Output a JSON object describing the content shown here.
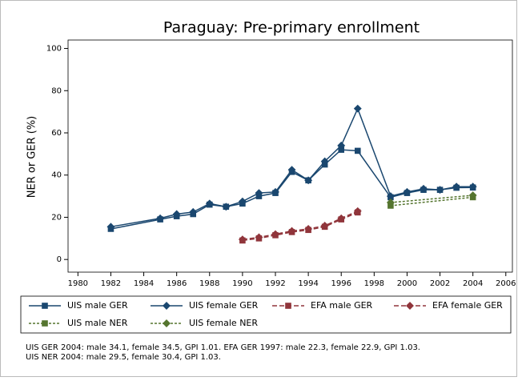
{
  "chart_data": {
    "type": "line",
    "title": "Paraguay: Pre-primary enrollment",
    "y_label": "NER or GER (%)",
    "xlim": [
      1979.4,
      2006.4
    ],
    "ylim": [
      -6,
      104
    ],
    "xticks": [
      1980,
      1982,
      1984,
      1986,
      1988,
      1990,
      1992,
      1994,
      1996,
      1998,
      2000,
      2002,
      2004,
      2006
    ],
    "yticks": [
      0,
      20,
      40,
      60,
      80,
      100
    ],
    "series": [
      {
        "name": "UIS male GER",
        "color": "#1a476f",
        "marker": "square",
        "dash": "solid",
        "x": [
          1982,
          1985,
          1986,
          1987,
          1988,
          1989,
          1990,
          1991,
          1992,
          1993,
          1994,
          1995,
          1996,
          1997,
          1999,
          2000,
          2001,
          2002,
          2003,
          2004
        ],
        "values": [
          14.5,
          19,
          20.5,
          21.5,
          26,
          25,
          26.5,
          30,
          31.5,
          41.5,
          37.5,
          45,
          52,
          51.5,
          29.5,
          31.5,
          33,
          33,
          34,
          34.1
        ]
      },
      {
        "name": "UIS female GER",
        "color": "#1a476f",
        "marker": "diamond",
        "dash": "solid",
        "x": [
          1982,
          1985,
          1986,
          1987,
          1988,
          1989,
          1990,
          1991,
          1992,
          1993,
          1994,
          1995,
          1996,
          1997,
          1999,
          2000,
          2001,
          2002,
          2003,
          2004
        ],
        "values": [
          15.5,
          19.5,
          21.5,
          22.5,
          26.5,
          25,
          27.5,
          31.5,
          32,
          42.5,
          37.5,
          46.5,
          54,
          71.5,
          30,
          32,
          33.5,
          33,
          34.5,
          34.5
        ]
      },
      {
        "name": "EFA male GER",
        "color": "#90353b",
        "marker": "square",
        "dash": "dash",
        "x": [
          1990,
          1991,
          1992,
          1993,
          1994,
          1995,
          1996,
          1997
        ],
        "values": [
          9,
          10,
          11.5,
          13,
          14,
          15.5,
          19,
          22.3
        ]
      },
      {
        "name": "EFA female GER",
        "color": "#90353b",
        "marker": "diamond",
        "dash": "dash",
        "x": [
          1990,
          1991,
          1992,
          1993,
          1994,
          1995,
          1996,
          1997
        ],
        "values": [
          9.5,
          10.5,
          12,
          13.5,
          14.5,
          16,
          19.5,
          22.9
        ]
      },
      {
        "name": "UIS male NER",
        "color": "#55752f",
        "marker": "square",
        "dash": "dot",
        "x": [
          1999,
          2004
        ],
        "values": [
          25.5,
          29.5
        ]
      },
      {
        "name": "UIS female NER",
        "color": "#55752f",
        "marker": "diamond",
        "dash": "dot",
        "x": [
          1999,
          2004
        ],
        "values": [
          27,
          30.4
        ]
      }
    ],
    "notes": [
      "UIS GER 2004: male 34.1, female 34.5, GPI 1.01.  EFA GER 1997: male 22.3, female 22.9, GPI 1.03.",
      "UIS NER 2004: male 29.5, female 30.4, GPI 1.03."
    ]
  }
}
